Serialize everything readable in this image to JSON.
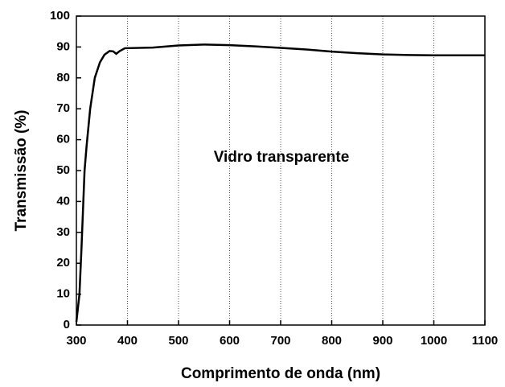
{
  "chart_data": {
    "type": "line",
    "xlabel": "Comprimento de onda (nm)",
    "ylabel": "Transmissão (%)",
    "annotation": "Vidro transparente",
    "x": [
      300,
      306,
      310,
      316,
      320,
      327,
      336,
      346,
      355,
      365,
      372,
      378,
      385,
      395,
      450,
      500,
      550,
      600,
      650,
      700,
      750,
      800,
      850,
      900,
      950,
      1000,
      1050,
      1100
    ],
    "series": [
      {
        "name": "Vidro transparente",
        "color": "#000000",
        "values": [
          1,
          10,
          25,
          50,
          58,
          70,
          80,
          85,
          87.5,
          88.7,
          88.6,
          87.8,
          88.7,
          89.6,
          89.8,
          90.5,
          90.8,
          90.6,
          90.2,
          89.7,
          89.2,
          88.5,
          88,
          87.6,
          87.4,
          87.3,
          87.3,
          87.3
        ]
      }
    ],
    "xlim": [
      300,
      1100
    ],
    "xticks": [
      300,
      400,
      500,
      600,
      700,
      800,
      900,
      1000,
      1100
    ],
    "ylim": [
      0,
      100
    ],
    "yticks": [
      0,
      10,
      20,
      30,
      40,
      50,
      60,
      70,
      80,
      90,
      100
    ],
    "grid": "x"
  }
}
